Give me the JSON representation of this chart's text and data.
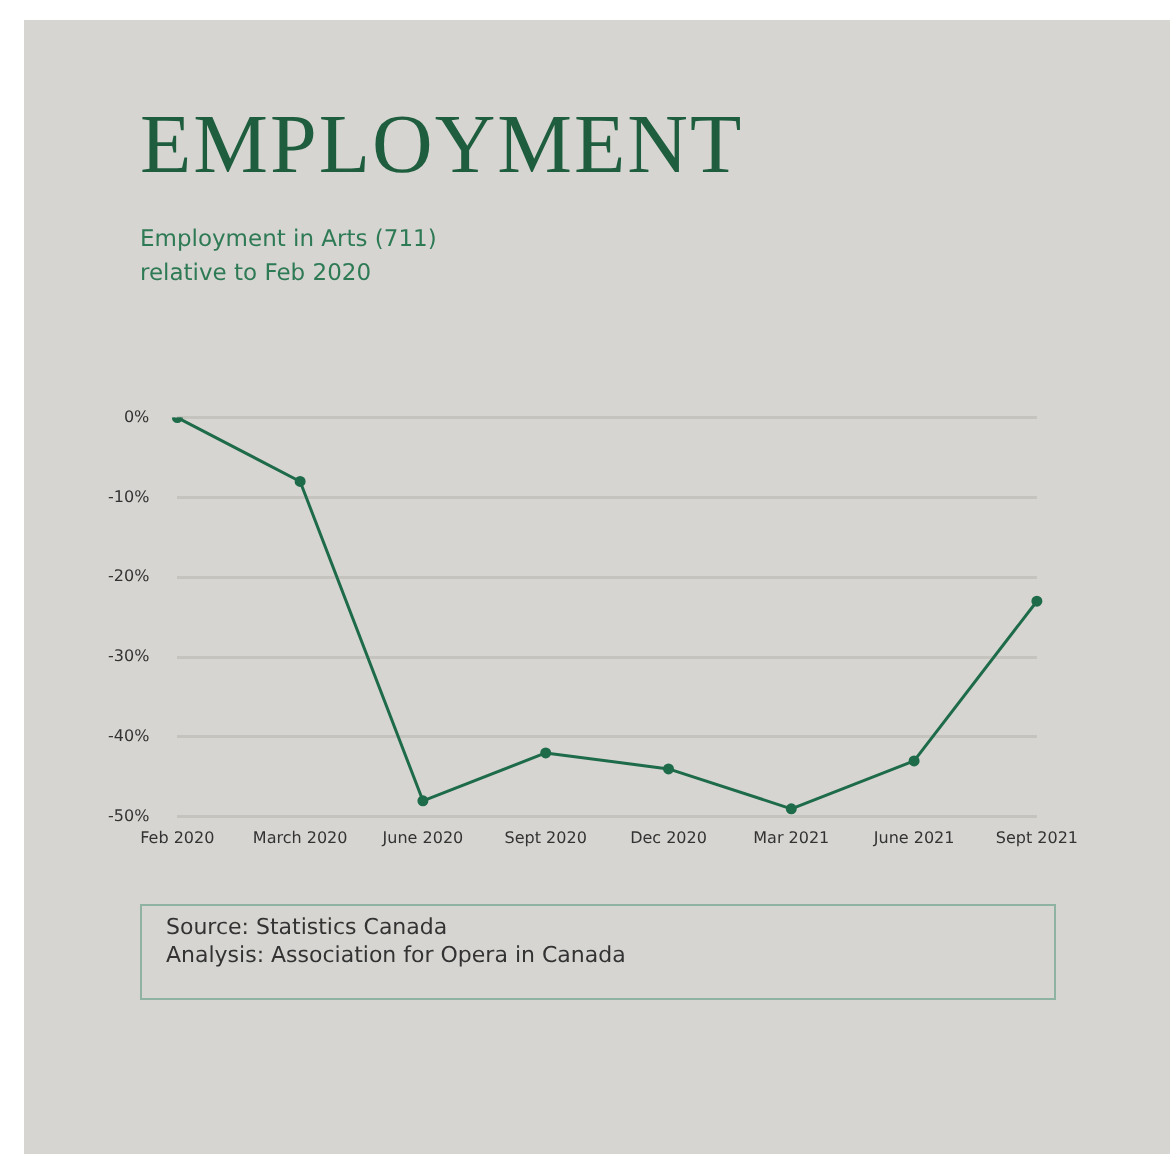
{
  "chart_data": {
    "type": "line",
    "title": "EMPLOYMENT",
    "subtitle": "Employment in Arts (711)\nrelative to Feb 2020",
    "categories": [
      "Feb 2020",
      "March 2020",
      "June 2020",
      "Sept 2020",
      "Dec 2020",
      "Mar 2021",
      "June 2021",
      "Sept 2021"
    ],
    "series": [
      {
        "color": "#1e6b4a",
        "values": [
          0,
          -8,
          -48,
          -42,
          -44,
          -49,
          -43,
          -23
        ]
      }
    ],
    "ylim": [
      -50,
      0
    ],
    "yticks": [
      {
        "value": 0,
        "label": "0%"
      },
      {
        "value": -10,
        "label": "-10%"
      },
      {
        "value": -20,
        "label": "-20%"
      },
      {
        "value": -30,
        "label": "-30%"
      },
      {
        "value": -40,
        "label": "-40%"
      },
      {
        "value": -50,
        "label": "-50%"
      }
    ],
    "grid": "y",
    "legend": false,
    "marker": "circle",
    "line_style": "solid",
    "annotations": [
      "Source: Statistics Canada",
      "Analysis: Association for Opera in Canada"
    ]
  }
}
